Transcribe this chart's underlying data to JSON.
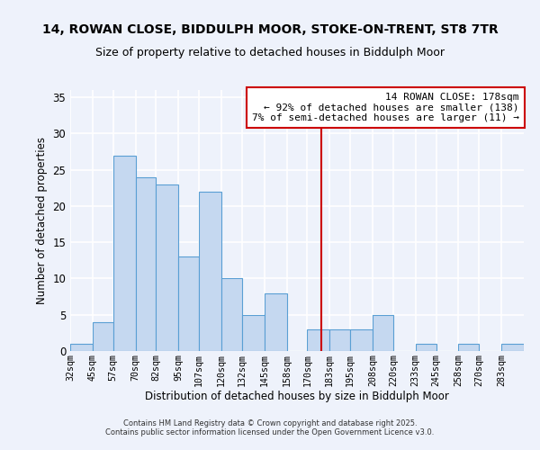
{
  "title": "14, ROWAN CLOSE, BIDDULPH MOOR, STOKE-ON-TRENT, ST8 7TR",
  "subtitle": "Size of property relative to detached houses in Biddulph Moor",
  "xlabel": "Distribution of detached houses by size in Biddulph Moor",
  "ylabel": "Number of detached properties",
  "bin_labels": [
    "32sqm",
    "45sqm",
    "57sqm",
    "70sqm",
    "82sqm",
    "95sqm",
    "107sqm",
    "120sqm",
    "132sqm",
    "145sqm",
    "158sqm",
    "170sqm",
    "183sqm",
    "195sqm",
    "208sqm",
    "220sqm",
    "233sqm",
    "245sqm",
    "258sqm",
    "270sqm",
    "283sqm"
  ],
  "bin_edges": [
    32,
    45,
    57,
    70,
    82,
    95,
    107,
    120,
    132,
    145,
    158,
    170,
    183,
    195,
    208,
    220,
    233,
    245,
    258,
    270,
    283,
    296
  ],
  "counts": [
    1,
    4,
    27,
    24,
    23,
    13,
    22,
    10,
    5,
    8,
    0,
    3,
    3,
    3,
    5,
    0,
    1,
    0,
    1,
    0,
    1
  ],
  "bar_color": "#c5d8f0",
  "bar_edge_color": "#5a9fd4",
  "vline_x": 178,
  "vline_color": "#cc0000",
  "annotation_line1": "14 ROWAN CLOSE: 178sqm",
  "annotation_line2": "← 92% of detached houses are smaller (138)",
  "annotation_line3": "7% of semi-detached houses are larger (11) →",
  "annotation_box_color": "#ffffff",
  "annotation_box_edge": "#cc0000",
  "ylim": [
    0,
    36
  ],
  "yticks": [
    0,
    5,
    10,
    15,
    20,
    25,
    30,
    35
  ],
  "background_color": "#eef2fb",
  "grid_color": "#ffffff",
  "footer_line1": "Contains HM Land Registry data © Crown copyright and database right 2025.",
  "footer_line2": "Contains public sector information licensed under the Open Government Licence v3.0."
}
